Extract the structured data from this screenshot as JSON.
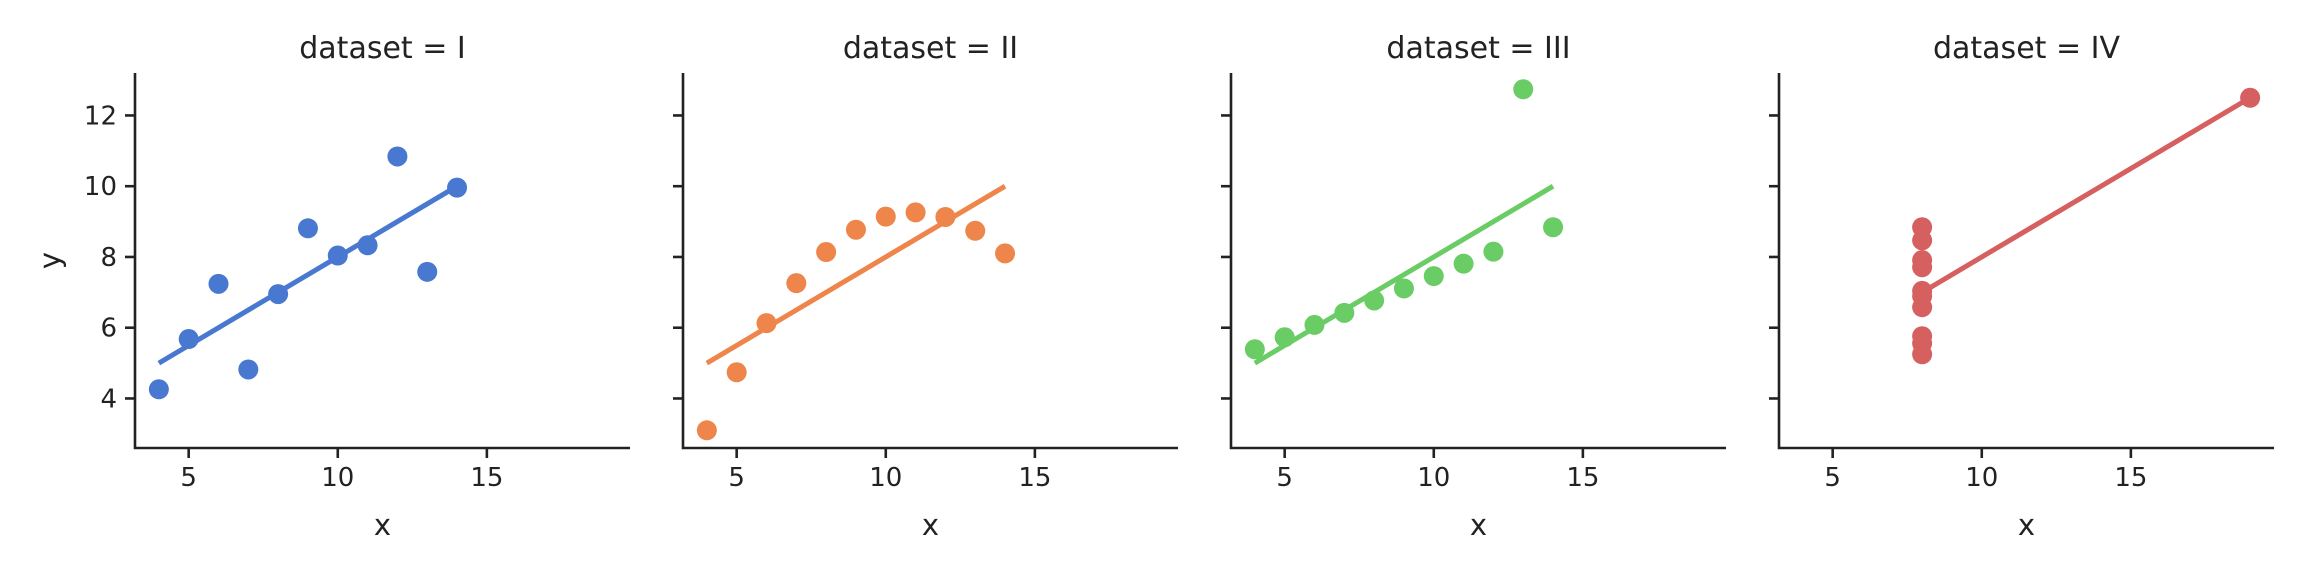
{
  "chart_data": [
    {
      "type": "scatter",
      "title": "dataset = I",
      "xlabel": "x",
      "ylabel": "y",
      "xlim": [
        3.2,
        19.8
      ],
      "ylim": [
        2.6,
        13.2
      ],
      "xticks": [
        5,
        10,
        15
      ],
      "yticks": [
        4,
        6,
        8,
        10,
        12
      ],
      "show_y_tick_labels": true,
      "color": "#4878d0",
      "points": {
        "x": [
          10,
          8,
          13,
          9,
          11,
          14,
          6,
          4,
          12,
          7,
          5
        ],
        "y": [
          8.04,
          6.95,
          7.58,
          8.81,
          8.33,
          9.96,
          7.24,
          4.26,
          10.84,
          4.82,
          5.68
        ]
      },
      "fit": {
        "x": [
          4,
          14
        ],
        "y": [
          5.0,
          10.0
        ]
      }
    },
    {
      "type": "scatter",
      "title": "dataset = II",
      "xlabel": "x",
      "ylabel": "",
      "xlim": [
        3.2,
        19.8
      ],
      "ylim": [
        2.6,
        13.2
      ],
      "xticks": [
        5,
        10,
        15
      ],
      "yticks": [
        4,
        6,
        8,
        10,
        12
      ],
      "show_y_tick_labels": false,
      "color": "#ee854a",
      "points": {
        "x": [
          10,
          8,
          13,
          9,
          11,
          14,
          6,
          4,
          12,
          7,
          5
        ],
        "y": [
          9.14,
          8.14,
          8.74,
          8.77,
          9.26,
          8.1,
          6.13,
          3.1,
          9.13,
          7.26,
          4.74
        ]
      },
      "fit": {
        "x": [
          4,
          14
        ],
        "y": [
          5.0,
          10.0
        ]
      }
    },
    {
      "type": "scatter",
      "title": "dataset = III",
      "xlabel": "x",
      "ylabel": "",
      "xlim": [
        3.2,
        19.8
      ],
      "ylim": [
        2.6,
        13.2
      ],
      "xticks": [
        5,
        10,
        15
      ],
      "yticks": [
        4,
        6,
        8,
        10,
        12
      ],
      "show_y_tick_labels": false,
      "color": "#6acc64",
      "points": {
        "x": [
          10,
          8,
          13,
          9,
          11,
          14,
          6,
          4,
          12,
          7,
          5
        ],
        "y": [
          7.46,
          6.77,
          12.74,
          7.11,
          7.81,
          8.84,
          6.08,
          5.39,
          8.15,
          6.42,
          5.73
        ]
      },
      "fit": {
        "x": [
          4,
          14
        ],
        "y": [
          5.0,
          10.0
        ]
      }
    },
    {
      "type": "scatter",
      "title": "dataset = IV",
      "xlabel": "x",
      "ylabel": "",
      "xlim": [
        3.2,
        19.8
      ],
      "ylim": [
        2.6,
        13.2
      ],
      "xticks": [
        5,
        10,
        15
      ],
      "yticks": [
        4,
        6,
        8,
        10,
        12
      ],
      "show_y_tick_labels": false,
      "color": "#d65f5f",
      "points": {
        "x": [
          8,
          8,
          8,
          8,
          8,
          8,
          8,
          19,
          8,
          8,
          8
        ],
        "y": [
          6.58,
          5.76,
          7.71,
          8.84,
          8.47,
          7.04,
          5.25,
          12.5,
          5.56,
          7.91,
          6.89
        ]
      },
      "fit": {
        "x": [
          8,
          19
        ],
        "y": [
          7.0,
          12.5
        ]
      }
    }
  ]
}
